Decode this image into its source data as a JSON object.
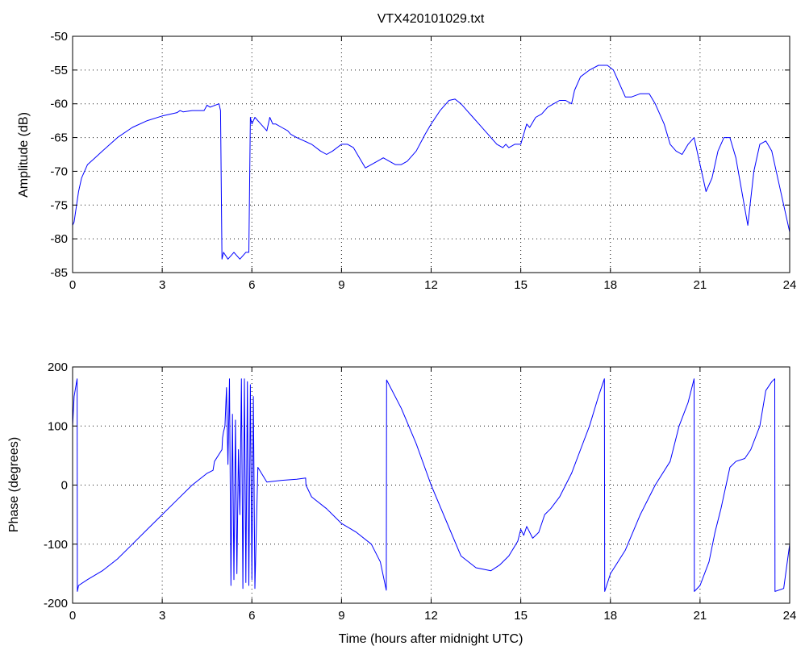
{
  "chart_data": [
    {
      "type": "line",
      "title": "VTX420101029.txt",
      "xlabel": "",
      "ylabel": "Amplitude (dB)",
      "xlim": [
        0,
        24
      ],
      "ylim": [
        -85,
        -50
      ],
      "xticks": [
        0,
        3,
        6,
        9,
        12,
        15,
        18,
        21,
        24
      ],
      "yticks": [
        -85,
        -80,
        -75,
        -70,
        -65,
        -60,
        -55,
        -50
      ],
      "grid": true,
      "series": [
        {
          "color": "#0000ff",
          "x": [
            0,
            0.05,
            0.1,
            0.2,
            0.3,
            0.5,
            0.75,
            1.0,
            1.5,
            2.0,
            2.5,
            3.0,
            3.5,
            3.6,
            3.7,
            4.0,
            4.4,
            4.5,
            4.6,
            4.9,
            4.95,
            5.0,
            5.05,
            5.2,
            5.4,
            5.6,
            5.8,
            5.9,
            5.95,
            6.0,
            6.1,
            6.3,
            6.5,
            6.6,
            6.7,
            6.8,
            7.0,
            7.2,
            7.3,
            7.5,
            8.0,
            8.3,
            8.5,
            8.7,
            9.0,
            9.2,
            9.4,
            9.6,
            9.8,
            10.0,
            10.2,
            10.4,
            10.6,
            10.8,
            11.0,
            11.2,
            11.5,
            11.8,
            12.0,
            12.3,
            12.6,
            12.8,
            13.0,
            13.2,
            13.4,
            13.6,
            13.8,
            14.0,
            14.2,
            14.4,
            14.5,
            14.6,
            14.8,
            15.0,
            15.2,
            15.3,
            15.5,
            15.7,
            15.9,
            16.1,
            16.3,
            16.5,
            16.7,
            16.8,
            17.0,
            17.3,
            17.6,
            17.9,
            18.1,
            18.3,
            18.5,
            18.7,
            19.0,
            19.3,
            19.5,
            19.8,
            20.0,
            20.2,
            20.4,
            20.6,
            20.8,
            21.0,
            21.2,
            21.4,
            21.6,
            21.8,
            22.0,
            22.2,
            22.4,
            22.6,
            22.8,
            23.0,
            23.2,
            23.4,
            23.6,
            23.8,
            24.0
          ],
          "y": [
            -78,
            -77.5,
            -76,
            -73,
            -71,
            -69,
            -68,
            -67,
            -65,
            -63.5,
            -62.5,
            -61.8,
            -61.3,
            -61.0,
            -61.2,
            -61.0,
            -61.0,
            -60.2,
            -60.5,
            -60.0,
            -61.0,
            -83,
            -82,
            -83,
            -82,
            -83,
            -82,
            -82,
            -62,
            -63,
            -62,
            -63,
            -64,
            -62,
            -63,
            -63,
            -63.5,
            -64,
            -64.5,
            -65,
            -66,
            -67,
            -67.5,
            -67,
            -66,
            -66,
            -66.5,
            -68,
            -69.5,
            -69,
            -68.5,
            -68,
            -68.5,
            -69,
            -69,
            -68.5,
            -67,
            -64.5,
            -63,
            -61,
            -59.5,
            -59.3,
            -60,
            -61,
            -62,
            -63,
            -64,
            -65,
            -66,
            -66.5,
            -66,
            -66.5,
            -66,
            -66,
            -63,
            -63.5,
            -62,
            -61.5,
            -60.5,
            -60,
            -59.5,
            -59.5,
            -60,
            -58,
            -56,
            -55,
            -54.3,
            -54.3,
            -55,
            -57,
            -59,
            -59,
            -58.5,
            -58.5,
            -60,
            -63,
            -66,
            -67,
            -67.5,
            -66,
            -65,
            -69,
            -73,
            -71,
            -67,
            -65,
            -65,
            -68,
            -73,
            -78,
            -70,
            -66,
            -65.5,
            -67,
            -71,
            -75,
            -79
          ]
        }
      ]
    },
    {
      "type": "line",
      "title": "",
      "xlabel": "Time (hours after midnight UTC)",
      "ylabel": "Phase (degrees)",
      "xlim": [
        0,
        24
      ],
      "ylim": [
        -200,
        200
      ],
      "xticks": [
        0,
        3,
        6,
        9,
        12,
        15,
        18,
        21,
        24
      ],
      "yticks": [
        -200,
        -100,
        0,
        100,
        200
      ],
      "grid": true,
      "series": [
        {
          "color": "#0000ff",
          "x": [
            0,
            0.05,
            0.15,
            0.16,
            0.2,
            0.5,
            1.0,
            1.5,
            2.0,
            2.5,
            3.0,
            3.5,
            4.0,
            4.5,
            4.7,
            4.75,
            5.0,
            5.02,
            5.05,
            5.1,
            5.15,
            5.2,
            5.25,
            5.3,
            5.35,
            5.4,
            5.45,
            5.5,
            5.55,
            5.6,
            5.65,
            5.7,
            5.75,
            5.8,
            5.85,
            5.9,
            5.95,
            6.0,
            6.05,
            6.1,
            6.2,
            6.5,
            7.0,
            7.5,
            7.8,
            7.81,
            8.0,
            8.5,
            9.0,
            9.5,
            10.0,
            10.3,
            10.5,
            10.51,
            11.0,
            11.5,
            12.0,
            12.5,
            13.0,
            13.5,
            14.0,
            14.3,
            14.6,
            14.9,
            15.0,
            15.1,
            15.2,
            15.4,
            15.6,
            15.8,
            16.0,
            16.3,
            16.5,
            16.7,
            17.0,
            17.3,
            17.6,
            17.8,
            17.81,
            18.0,
            18.5,
            19.0,
            19.5,
            20.0,
            20.3,
            20.6,
            20.8,
            20.81,
            21.0,
            21.3,
            21.5,
            21.7,
            22.0,
            22.2,
            22.5,
            22.7,
            23.0,
            23.2,
            23.4,
            23.5,
            23.51,
            23.8,
            24.0
          ],
          "y": [
            100,
            150,
            180,
            -180,
            -170,
            -160,
            -145,
            -125,
            -100,
            -75,
            -50,
            -25,
            0,
            20,
            25,
            40,
            60,
            80,
            90,
            100,
            165,
            35,
            180,
            -170,
            120,
            -160,
            110,
            -150,
            60,
            -50,
            180,
            -175,
            180,
            -165,
            175,
            -170,
            170,
            -160,
            150,
            -175,
            30,
            5,
            8,
            10,
            12,
            0,
            -20,
            -40,
            -65,
            -80,
            -100,
            -130,
            -178,
            178,
            130,
            70,
            0,
            -60,
            -120,
            -140,
            -145,
            -135,
            -120,
            -95,
            -75,
            -85,
            -70,
            -90,
            -80,
            -50,
            -40,
            -20,
            0,
            20,
            60,
            100,
            150,
            180,
            -180,
            -150,
            -110,
            -50,
            0,
            40,
            100,
            140,
            180,
            -180,
            -170,
            -130,
            -80,
            -40,
            30,
            40,
            45,
            60,
            100,
            160,
            175,
            180,
            -180,
            -175,
            -100
          ]
        }
      ]
    }
  ]
}
